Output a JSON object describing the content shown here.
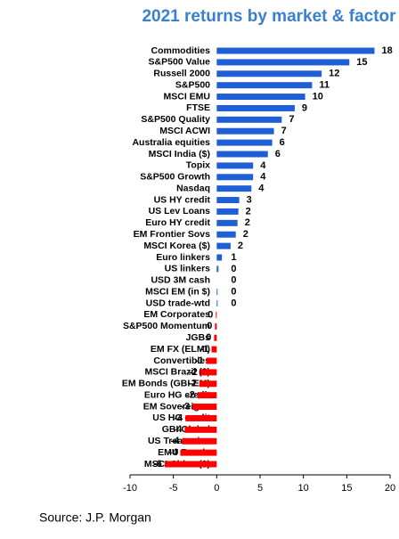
{
  "chart_data": {
    "type": "barh",
    "title": "2021 returns by market & factor",
    "source": "Source: J.P. Morgan",
    "categories": [
      "Commodities",
      "S&P500 Value",
      "Russell 2000",
      "S&P500",
      "MSCI EMU",
      "FTSE",
      "S&P500 Quality",
      "MSCI ACWI",
      "Australia equities",
      "MSCI India ($)",
      "Topix",
      "S&P500 Growth",
      "Nasdaq",
      "US HY credit",
      "US Lev Loans",
      "Euro HY credit",
      "EM Frontier Sovs",
      "MSCI Korea ($)",
      "Euro linkers",
      "US linkers",
      "USD 3M cash",
      "MSCI EM (in $)",
      "USD trade-wtd",
      "EM Corporates",
      "S&P500 Momentum",
      "JGBs",
      "EM FX (ELMI)",
      "Convertibles",
      "MSCI Brazil ($)",
      "EM Bonds (GBI-EM)",
      "Euro HG credit",
      "EM Sovereigns",
      "US HG credit",
      "GBI Global",
      "US Treasuries",
      "EMU Bonds",
      "MSCI China ($)"
    ],
    "values": [
      18.2,
      15.3,
      12.1,
      11.0,
      10.2,
      9.0,
      7.5,
      6.6,
      6.4,
      5.9,
      4.2,
      4.2,
      4.0,
      2.6,
      2.5,
      2.4,
      2.2,
      1.6,
      0.6,
      0.2,
      0.0,
      0.1,
      0.1,
      -0.1,
      -0.2,
      -0.3,
      -0.6,
      -1.2,
      -1.9,
      -2.0,
      -2.2,
      -2.8,
      -3.6,
      -3.7,
      -4.0,
      -4.2,
      -6.0
    ],
    "value_labels": [
      "18",
      "15",
      "12",
      "11",
      "10",
      "9",
      "7",
      "7",
      "6",
      "6",
      "4",
      "4",
      "4",
      "3",
      "2",
      "2",
      "2",
      "2",
      "1",
      "0",
      "0",
      "0",
      "0",
      "0",
      "0",
      "0",
      "-1",
      "-1",
      "-2",
      "-2",
      "-2",
      "-3",
      "-4",
      "-4",
      "-4",
      "-4",
      "-6"
    ],
    "color": "#1f5fd6",
    "negative_color": "#ff0000",
    "xlim": [
      -10,
      20
    ],
    "xticks": [
      -10,
      -5,
      0,
      5,
      10,
      15,
      20
    ]
  }
}
